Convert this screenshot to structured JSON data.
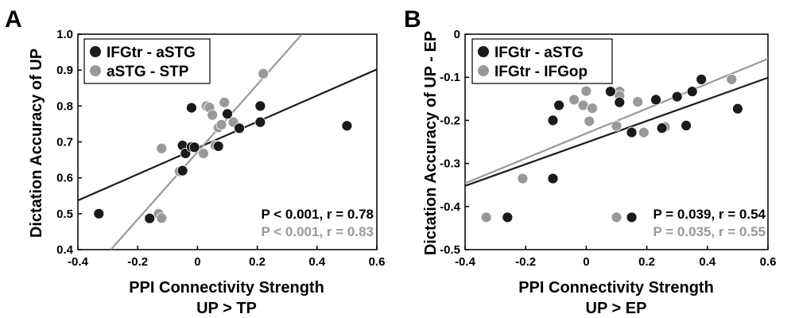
{
  "chart_data": [
    {
      "type": "scatter",
      "panel_label": "A",
      "xlabel_line1": "PPI Connectivity Strength",
      "xlabel_line2": "UP > TP",
      "ylabel": "Dictation Accuracy of UP",
      "xlim": [
        -0.4,
        0.6
      ],
      "ylim": [
        0.4,
        1.0
      ],
      "xticks": [
        -0.4,
        -0.2,
        0,
        0.2,
        0.4,
        0.6
      ],
      "xtick_labels": [
        "-0.4",
        "-0.2",
        "0",
        "0.2",
        "0.4",
        "0.6"
      ],
      "yticks": [
        0.4,
        0.5,
        0.6,
        0.7,
        0.8,
        0.9,
        1.0
      ],
      "ytick_labels": [
        "0.4",
        "0.5",
        "0.6",
        "0.7",
        "0.8",
        "0.9",
        "1.0"
      ],
      "legend_position": "top-left",
      "series": [
        {
          "name": "IFGtr - aSTG",
          "color": "#1a1a1a",
          "points": [
            [
              -0.33,
              0.5
            ],
            [
              -0.16,
              0.487
            ],
            [
              -0.05,
              0.62
            ],
            [
              -0.05,
              0.69
            ],
            [
              -0.04,
              0.668
            ],
            [
              -0.02,
              0.686
            ],
            [
              -0.02,
              0.795
            ],
            [
              -0.01,
              0.685
            ],
            [
              0.07,
              0.688
            ],
            [
              0.1,
              0.778
            ],
            [
              0.14,
              0.738
            ],
            [
              0.21,
              0.8
            ],
            [
              0.21,
              0.755
            ],
            [
              0.5,
              0.745
            ]
          ],
          "fit_line": [
            [
              -0.4,
              0.537
            ],
            [
              0.6,
              0.902
            ]
          ],
          "stat_text": "P < 0.001, r = 0.78"
        },
        {
          "name": "aSTG - STP",
          "color": "#999999",
          "points": [
            [
              -0.13,
              0.5
            ],
            [
              -0.12,
              0.488
            ],
            [
              -0.12,
              0.682
            ],
            [
              -0.06,
              0.618
            ],
            [
              0.02,
              0.668
            ],
            [
              0.03,
              0.8
            ],
            [
              0.04,
              0.796
            ],
            [
              0.05,
              0.775
            ],
            [
              0.06,
              0.69
            ],
            [
              0.07,
              0.74
            ],
            [
              0.08,
              0.748
            ],
            [
              0.09,
              0.81
            ],
            [
              0.12,
              0.755
            ],
            [
              0.22,
              0.89
            ]
          ],
          "fit_line": [
            [
              -0.2898,
              0.4
            ],
            [
              0.3496,
              1.0
            ]
          ],
          "stat_text": "P < 0.001, r = 0.83"
        }
      ]
    },
    {
      "type": "scatter",
      "panel_label": "B",
      "xlabel_line1": "PPI Connectivity Strength",
      "xlabel_line2": "UP > EP",
      "ylabel": "Dictation Accuracy of UP - EP",
      "xlim": [
        -0.4,
        0.6
      ],
      "ylim": [
        -0.5,
        0.0
      ],
      "xticks": [
        -0.4,
        -0.2,
        0,
        0.2,
        0.4,
        0.6
      ],
      "xtick_labels": [
        "-0.4",
        "-0.2",
        "0",
        "0.2",
        "0.4",
        "0.6"
      ],
      "yticks": [
        -0.5,
        -0.4,
        -0.3,
        -0.2,
        -0.1,
        0.0
      ],
      "ytick_labels": [
        "-0.5",
        "-0.4",
        "-0.3",
        "-0.2",
        "-0.1",
        "0"
      ],
      "legend_position": "top-left",
      "series": [
        {
          "name": "IFGtr - aSTG",
          "color": "#1a1a1a",
          "points": [
            [
              -0.26,
              -0.425
            ],
            [
              -0.11,
              -0.2
            ],
            [
              -0.11,
              -0.335
            ],
            [
              -0.09,
              -0.165
            ],
            [
              0.08,
              -0.133
            ],
            [
              0.11,
              -0.158
            ],
            [
              0.15,
              -0.228
            ],
            [
              0.15,
              -0.425
            ],
            [
              0.23,
              -0.152
            ],
            [
              0.25,
              -0.218
            ],
            [
              0.3,
              -0.145
            ],
            [
              0.33,
              -0.212
            ],
            [
              0.35,
              -0.133
            ],
            [
              0.38,
              -0.105
            ],
            [
              0.5,
              -0.173
            ]
          ],
          "fit_line": [
            [
              -0.4,
              -0.352
            ],
            [
              0.6,
              -0.101
            ]
          ],
          "stat_text": "P = 0.039, r = 0.54"
        },
        {
          "name": "IFGtr - IFGop",
          "color": "#999999",
          "points": [
            [
              -0.33,
              -0.425
            ],
            [
              -0.21,
              -0.335
            ],
            [
              -0.04,
              -0.152
            ],
            [
              -0.01,
              -0.165
            ],
            [
              0.0,
              -0.132
            ],
            [
              0.01,
              -0.202
            ],
            [
              0.02,
              -0.172
            ],
            [
              0.1,
              -0.213
            ],
            [
              0.1,
              -0.425
            ],
            [
              0.11,
              -0.133
            ],
            [
              0.11,
              -0.143
            ],
            [
              0.17,
              -0.157
            ],
            [
              0.19,
              -0.228
            ],
            [
              0.26,
              -0.215
            ],
            [
              0.48,
              -0.105
            ]
          ],
          "fit_line": [
            [
              -0.4,
              -0.346
            ],
            [
              0.6,
              -0.057
            ]
          ],
          "stat_text": "P = 0.035, r = 0.55"
        }
      ]
    }
  ]
}
